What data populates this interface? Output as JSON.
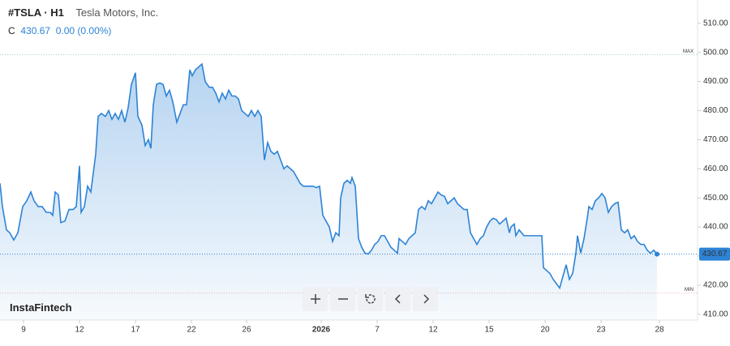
{
  "header": {
    "symbol": "#TSLA · H1",
    "name": "Tesla Motors, Inc.",
    "close_label": "C",
    "change": "0.00 (0.00%)"
  },
  "logo": "InstaFintech",
  "chart_data": {
    "type": "area",
    "color": "#2d83d6",
    "last_value": 430.67,
    "x": [
      0,
      3,
      8,
      12,
      17,
      22,
      28,
      33,
      38,
      42,
      47,
      52,
      57,
      62,
      65,
      68,
      72,
      75,
      80,
      85,
      90,
      94,
      98,
      100,
      104,
      108,
      112,
      118,
      121,
      125,
      130,
      134,
      138,
      142,
      146,
      150,
      154,
      158,
      162,
      167,
      170,
      175,
      179,
      183,
      186,
      189,
      193,
      197,
      201,
      205,
      209,
      213,
      218,
      222,
      226,
      230,
      234,
      237,
      241,
      245,
      249,
      253,
      258,
      262,
      266,
      270,
      274,
      278,
      282,
      286,
      290,
      294,
      298,
      302,
      306,
      310,
      314,
      318,
      322,
      326,
      330,
      334,
      338,
      342,
      346,
      350,
      354,
      358,
      362,
      366,
      370,
      374,
      378,
      386,
      390,
      394,
      398,
      402,
      406,
      410,
      414,
      418,
      420,
      424,
      428,
      432,
      434,
      438,
      440,
      442,
      446,
      450,
      454,
      458,
      462,
      466,
      470,
      474,
      478,
      482,
      486,
      490,
      492,
      496,
      500,
      504,
      508,
      512,
      516,
      520,
      524,
      528,
      532,
      536,
      540,
      544,
      548,
      552,
      556,
      560,
      564,
      568,
      572,
      576,
      580,
      584,
      588,
      592,
      596,
      600,
      604,
      608,
      612,
      616,
      620,
      624,
      628,
      630,
      634,
      636,
      640,
      646,
      650,
      668,
      670,
      674,
      678,
      682,
      686,
      690,
      694,
      698,
      702,
      706,
      710,
      712,
      716,
      720,
      724,
      726,
      730,
      734,
      738,
      742,
      746,
      750,
      754,
      758,
      762,
      766,
      770,
      774,
      778,
      782,
      786,
      790,
      794,
      798,
      802,
      806,
      810
    ],
    "values": [
      455,
      447,
      439,
      438,
      435.5,
      438,
      447,
      449,
      452,
      449,
      447,
      447,
      445,
      445,
      444,
      452,
      451,
      441.5,
      442,
      446,
      446,
      447,
      461,
      445,
      447,
      454,
      452,
      465,
      478,
      479,
      478,
      480,
      477,
      479,
      477,
      480,
      476,
      481,
      489,
      493,
      478,
      475,
      468,
      470,
      467,
      482,
      489,
      489.5,
      489,
      485,
      487,
      483,
      476,
      479,
      482,
      482,
      494,
      492,
      494,
      495,
      496,
      490,
      488,
      488,
      486,
      483,
      486,
      484,
      487,
      485,
      485,
      484,
      480,
      479,
      478,
      480,
      478,
      480,
      478,
      463,
      469,
      466,
      465,
      466,
      463,
      460,
      461,
      460,
      459,
      457,
      455,
      454,
      454,
      454,
      453.5,
      454,
      444,
      442,
      440,
      435,
      438,
      437,
      450,
      455,
      456,
      455,
      457,
      454,
      445,
      436,
      433,
      431,
      430.7,
      432,
      434,
      435,
      437,
      437,
      435,
      433,
      432,
      431,
      436,
      435,
      434,
      436,
      437,
      438,
      446,
      447,
      446,
      449,
      448,
      450,
      452,
      451,
      450.5,
      448,
      449,
      450,
      448,
      447,
      446,
      446,
      438,
      436,
      434,
      436,
      437,
      440,
      442,
      443,
      442.5,
      441,
      442,
      443,
      438,
      440,
      441,
      437,
      439,
      437,
      437,
      437,
      426,
      425,
      424,
      422,
      420.5,
      419,
      423,
      427,
      422,
      424,
      431,
      437,
      431,
      436,
      443,
      447,
      446,
      449,
      450,
      451.5,
      450,
      445,
      447,
      448,
      448.5,
      439,
      438,
      439,
      436,
      437,
      435,
      434,
      434,
      432,
      431,
      432,
      430.67
    ],
    "xlim": [
      0,
      860
    ],
    "ylim": [
      408,
      518
    ],
    "xticks": [
      {
        "value": 29,
        "label": "9"
      },
      {
        "value": 98,
        "label": "12"
      },
      {
        "value": 167,
        "label": "17"
      },
      {
        "value": 236,
        "label": "22"
      },
      {
        "value": 304,
        "label": "26"
      },
      {
        "value": 396,
        "label": "2026"
      },
      {
        "value": 465,
        "label": "7"
      },
      {
        "value": 534,
        "label": "12"
      },
      {
        "value": 603,
        "label": "15"
      },
      {
        "value": 672,
        "label": "20"
      },
      {
        "value": 741,
        "label": "23"
      },
      {
        "value": 813,
        "label": "28"
      }
    ],
    "yticks": [
      {
        "value": 410,
        "label": "410.00"
      },
      {
        "value": 420,
        "label": "420.00"
      },
      {
        "value": 430,
        "label": "430.00"
      },
      {
        "value": 440,
        "label": "440.00"
      },
      {
        "value": 450,
        "label": "450.00"
      },
      {
        "value": 460,
        "label": "460.00"
      },
      {
        "value": 470,
        "label": "470.00"
      },
      {
        "value": 480,
        "label": "480.00"
      },
      {
        "value": 490,
        "label": "490.00"
      },
      {
        "value": 500,
        "label": "500.00"
      },
      {
        "value": 510,
        "label": "510.00"
      }
    ],
    "max_line": {
      "value": 499.2,
      "label": "MAX"
    },
    "min_line": {
      "value": 417.3,
      "label": "MIN"
    }
  }
}
